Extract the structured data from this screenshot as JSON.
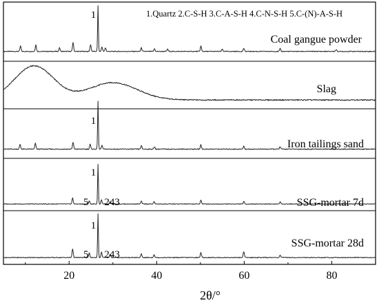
{
  "chart_data": {
    "type": "line",
    "xlabel": "2θ/°",
    "ylabel": "",
    "xlim": [
      5,
      90
    ],
    "x_ticks": [
      20,
      40,
      60,
      80
    ],
    "grid": false,
    "legend_text": "1.Quartz 2.C-S-H  3.C-A-S-H  4.C-N-S-H  5.C-(N)-A-S-H",
    "phases": [
      {
        "id": "1",
        "name": "Quartz"
      },
      {
        "id": "2",
        "name": "C-S-H"
      },
      {
        "id": "3",
        "name": "C-A-S-H"
      },
      {
        "id": "4",
        "name": "C-N-S-H"
      },
      {
        "id": "5",
        "name": "C-(N)-A-S-H"
      }
    ],
    "series": [
      {
        "name": "Coal gangue powder",
        "baseline": 0.02,
        "peaks": [
          {
            "x": 8.9,
            "y": 0.12
          },
          {
            "x": 12.4,
            "y": 0.15
          },
          {
            "x": 17.8,
            "y": 0.08
          },
          {
            "x": 20.9,
            "y": 0.2
          },
          {
            "x": 24.9,
            "y": 0.15
          },
          {
            "x": 26.6,
            "y": 1.0
          },
          {
            "x": 27.5,
            "y": 0.1
          },
          {
            "x": 28.3,
            "y": 0.08
          },
          {
            "x": 36.5,
            "y": 0.08
          },
          {
            "x": 39.5,
            "y": 0.06
          },
          {
            "x": 42.5,
            "y": 0.05
          },
          {
            "x": 50.1,
            "y": 0.12
          },
          {
            "x": 55.0,
            "y": 0.05
          },
          {
            "x": 59.9,
            "y": 0.07
          },
          {
            "x": 68.2,
            "y": 0.06
          },
          {
            "x": 81.0,
            "y": 0.04
          }
        ],
        "annotations": [
          {
            "text": "1",
            "x": 26.6
          }
        ]
      },
      {
        "name": "Slag",
        "baseline": 0.02,
        "humps": [
          {
            "x": 12.0,
            "y": 0.55,
            "width": 4.5
          },
          {
            "x": 30.0,
            "y": 0.28,
            "width": 5.5
          }
        ],
        "annotations": []
      },
      {
        "name": "Iron tailings sand",
        "baseline": 0.02,
        "peaks": [
          {
            "x": 8.8,
            "y": 0.1
          },
          {
            "x": 12.3,
            "y": 0.12
          },
          {
            "x": 20.9,
            "y": 0.14
          },
          {
            "x": 24.8,
            "y": 0.1
          },
          {
            "x": 26.6,
            "y": 1.0
          },
          {
            "x": 27.5,
            "y": 0.08
          },
          {
            "x": 36.5,
            "y": 0.07
          },
          {
            "x": 39.5,
            "y": 0.05
          },
          {
            "x": 50.1,
            "y": 0.09
          },
          {
            "x": 59.9,
            "y": 0.06
          },
          {
            "x": 68.2,
            "y": 0.05
          }
        ],
        "annotations": [
          {
            "text": "1",
            "x": 26.6
          }
        ]
      },
      {
        "name": "SSG-mortar 7d",
        "baseline": 0.03,
        "peaks": [
          {
            "x": 20.8,
            "y": 0.15
          },
          {
            "x": 24.6,
            "y": 0.08
          },
          {
            "x": 26.6,
            "y": 1.0
          },
          {
            "x": 27.4,
            "y": 0.1
          },
          {
            "x": 29.4,
            "y": 0.07
          },
          {
            "x": 36.5,
            "y": 0.07
          },
          {
            "x": 39.4,
            "y": 0.06
          },
          {
            "x": 50.1,
            "y": 0.1
          },
          {
            "x": 59.9,
            "y": 0.06
          },
          {
            "x": 68.2,
            "y": 0.05
          }
        ],
        "annotations": [
          {
            "text": "1",
            "x": 26.6
          },
          {
            "text": "5",
            "x": 24.6
          },
          {
            "text": "243",
            "x": 29.5
          }
        ]
      },
      {
        "name": "SSG-mortar 28d",
        "baseline": 0.03,
        "peaks": [
          {
            "x": 20.8,
            "y": 0.2
          },
          {
            "x": 24.6,
            "y": 0.1
          },
          {
            "x": 26.6,
            "y": 1.0
          },
          {
            "x": 27.4,
            "y": 0.12
          },
          {
            "x": 29.4,
            "y": 0.08
          },
          {
            "x": 36.5,
            "y": 0.08
          },
          {
            "x": 39.4,
            "y": 0.07
          },
          {
            "x": 50.1,
            "y": 0.12
          },
          {
            "x": 59.9,
            "y": 0.14
          },
          {
            "x": 68.2,
            "y": 0.06
          }
        ],
        "annotations": [
          {
            "text": "1",
            "x": 26.6
          },
          {
            "text": "5",
            "x": 24.6
          },
          {
            "text": "243",
            "x": 29.5
          }
        ]
      }
    ]
  }
}
